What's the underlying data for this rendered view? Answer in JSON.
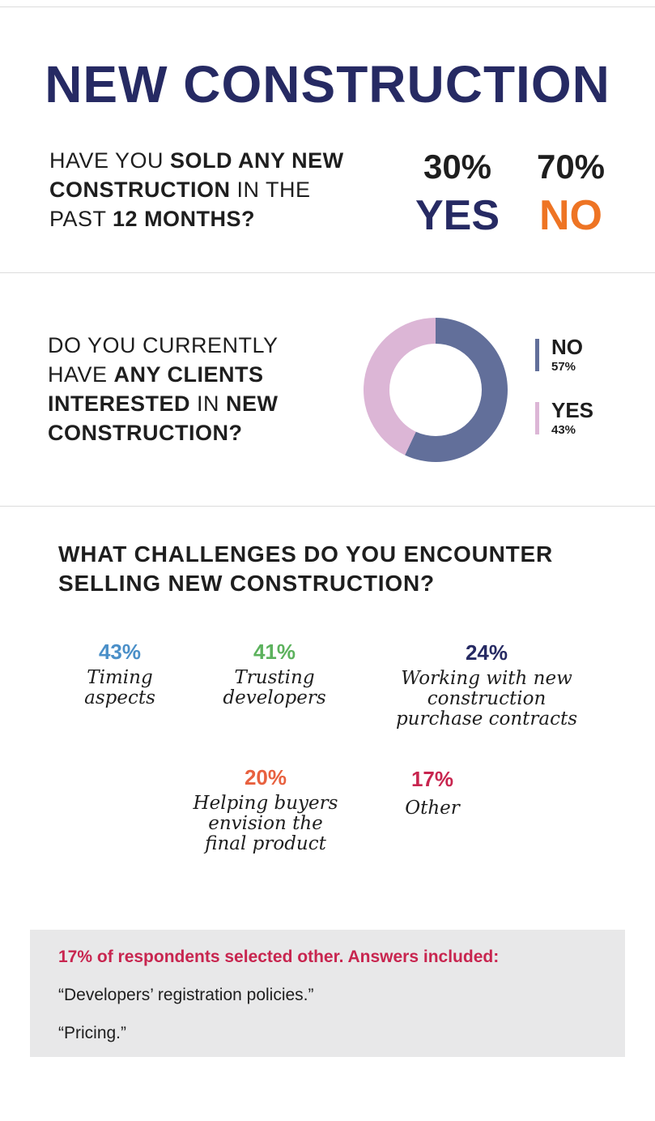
{
  "title": "NEW CONSTRUCTION",
  "q1": {
    "parts": [
      "HAVE YOU ",
      "SOLD ANY NEW CONSTRUCTION",
      " IN THE PAST ",
      "12 MONTHS?"
    ]
  },
  "q2": {
    "parts": [
      "DO YOU CURRENTLY HAVE ",
      "ANY CLIENTS INTERESTED",
      " IN ",
      "NEW CONSTRUCTION?"
    ]
  },
  "q3": {
    "line1": "WHAT CHALLENGES DO YOU ENCOUNTER",
    "line2": "SELLING NEW CONSTRUCTION?"
  },
  "colors": {
    "navy": "#262a63",
    "orange": "#ee7424",
    "donut_no": "#626f9a",
    "donut_yes": "#dcb6d6",
    "blue": "#4a8fc8",
    "green": "#5cb25d",
    "coral": "#e8613f",
    "crimson": "#c8254f"
  },
  "chart_data": [
    {
      "type": "table",
      "categories": [
        "YES",
        "NO"
      ],
      "values": [
        30,
        70
      ],
      "labels": [
        "30%",
        "70%"
      ]
    },
    {
      "type": "pie",
      "categories": [
        "NO",
        "YES"
      ],
      "values": [
        57,
        43
      ],
      "labels": [
        "57%",
        "43%"
      ],
      "legend": "right"
    },
    {
      "type": "table",
      "items": [
        {
          "pct": "43%",
          "value": 43,
          "lines": [
            "Timing",
            "aspects"
          ]
        },
        {
          "pct": "41%",
          "value": 41,
          "lines": [
            "Trusting",
            "developers"
          ]
        },
        {
          "pct": "24%",
          "value": 24,
          "lines": [
            "Working with new",
            "construction",
            "purchase contracts"
          ]
        },
        {
          "pct": "20%",
          "value": 20,
          "lines": [
            "Helping buyers",
            "envision the",
            "final product"
          ]
        },
        {
          "pct": "17%",
          "value": 17,
          "lines": [
            "Other"
          ]
        }
      ]
    }
  ],
  "note": {
    "heading": "17% of respondents selected other. Answers included:",
    "lines": [
      "“Developers’ registration policies.”",
      "“Pricing.”"
    ]
  }
}
